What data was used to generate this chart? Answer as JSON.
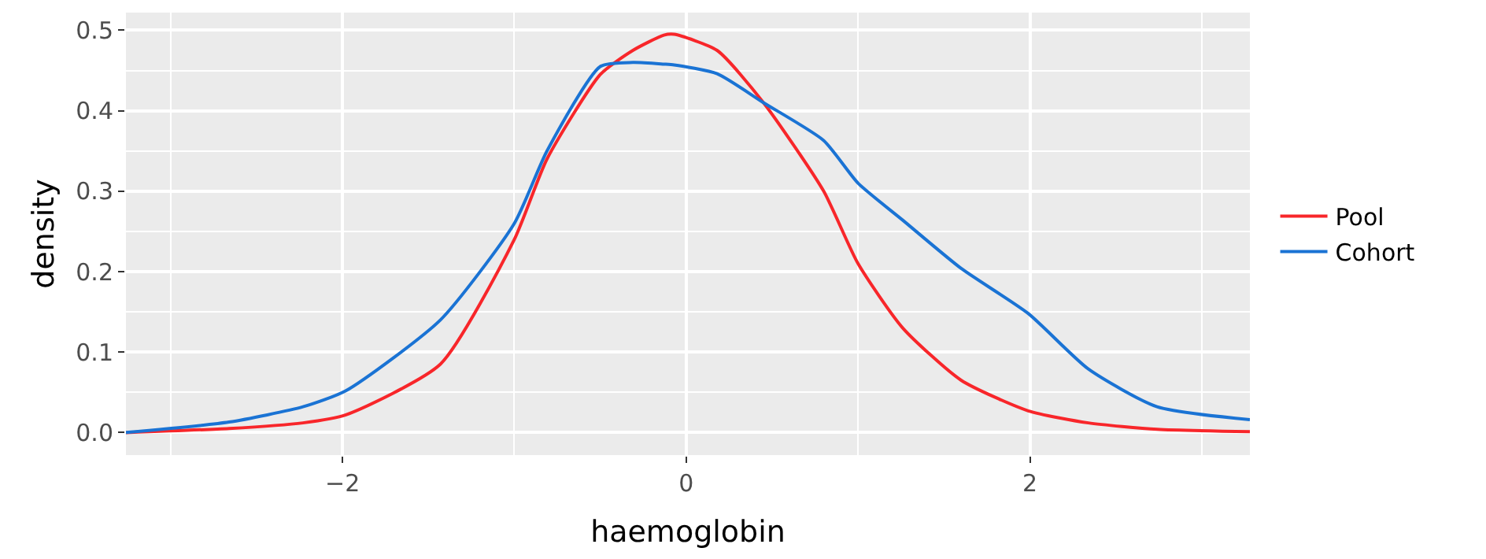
{
  "chart_data": {
    "type": "line",
    "xlabel": "haemoglobin",
    "ylabel": "density",
    "xlim": [
      -3.26,
      3.28
    ],
    "ylim": [
      -0.028,
      0.522
    ],
    "xticks": [
      {
        "value": -2,
        "label": "−2"
      },
      0,
      2
    ],
    "yticks": [
      {
        "value": 0,
        "label": "0.0"
      },
      0.1,
      0.2,
      0.3,
      0.4,
      0.5
    ],
    "grid": true,
    "legend": "right",
    "marker": "none",
    "line_style": "solid",
    "series": [
      {
        "name": "Pool",
        "color": "#f8262a",
        "x": [
          -3.26,
          -2.66,
          -2.23,
          -1.98,
          -1.43,
          -1.0,
          -0.81,
          -0.5,
          -0.31,
          -0.13,
          -0.07,
          0.18,
          0.45,
          0.8,
          1.0,
          1.26,
          1.6,
          1.99,
          2.34,
          2.74,
          3.28
        ],
        "values": [
          0.0,
          0.005,
          0.012,
          0.022,
          0.085,
          0.24,
          0.34,
          0.445,
          0.475,
          0.494,
          0.495,
          0.475,
          0.41,
          0.3,
          0.21,
          0.13,
          0.065,
          0.027,
          0.012,
          0.004,
          0.001
        ]
      },
      {
        "name": "Cohort",
        "color": "#1a73d4",
        "x": [
          -3.26,
          -2.66,
          -2.23,
          -1.98,
          -1.43,
          -1.0,
          -0.81,
          -0.5,
          -0.31,
          -0.13,
          -0.07,
          0.18,
          0.45,
          0.8,
          1.0,
          1.26,
          1.6,
          1.99,
          2.34,
          2.74,
          3.28
        ],
        "values": [
          0.0,
          0.013,
          0.032,
          0.052,
          0.14,
          0.26,
          0.35,
          0.455,
          0.46,
          0.458,
          0.457,
          0.446,
          0.41,
          0.363,
          0.31,
          0.264,
          0.204,
          0.148,
          0.079,
          0.032,
          0.016
        ]
      }
    ]
  }
}
